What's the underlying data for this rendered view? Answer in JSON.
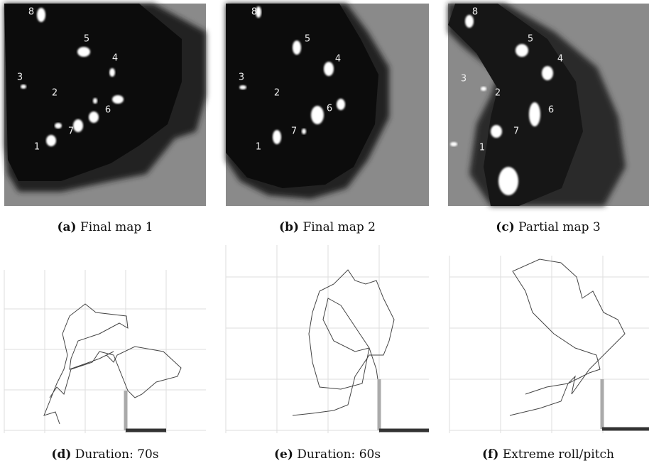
{
  "panels": [
    {
      "tag": "(a)",
      "caption": "Final map 1"
    },
    {
      "tag": "(b)",
      "caption": "Final map 2"
    },
    {
      "tag": "(c)",
      "caption": "Partial map 3"
    },
    {
      "tag": "(d)",
      "caption": "Duration: 70s"
    },
    {
      "tag": "(e)",
      "caption": "Duration: 60s"
    },
    {
      "tag": "(f)",
      "caption": "Extreme roll/pitch"
    }
  ],
  "maps": [
    {
      "landmarks": [
        "8",
        "5",
        "4",
        "3",
        "2",
        "6",
        "7",
        "1"
      ]
    },
    {
      "landmarks": [
        "8",
        "5",
        "4",
        "3",
        "2",
        "6",
        "7",
        "1"
      ]
    },
    {
      "landmarks": [
        "8",
        "5",
        "4",
        "3",
        "2",
        "6",
        "7",
        "1"
      ]
    }
  ]
}
